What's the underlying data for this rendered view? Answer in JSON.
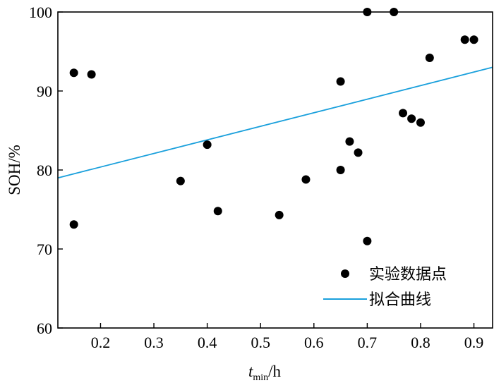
{
  "chart_data": {
    "type": "scatter",
    "xlabel": {
      "var": "t",
      "sub": "min",
      "unit": "/h"
    },
    "ylabel": "SOH/%",
    "xlim": [
      0.12,
      0.935
    ],
    "ylim": [
      60,
      100
    ],
    "xticks": [
      0.2,
      0.3,
      0.4,
      0.5,
      0.6,
      0.7,
      0.8,
      0.9
    ],
    "xtick_labels": [
      "0.2",
      "0.3",
      "0.4",
      "0.5",
      "0.6",
      "0.7",
      "0.8",
      "0.9"
    ],
    "yticks": [
      60,
      70,
      80,
      90,
      100
    ],
    "ytick_labels": [
      "60",
      "70",
      "80",
      "90",
      "100"
    ],
    "grid": false,
    "legend_position": "bottom-right",
    "series": [
      {
        "name": "实验数据点",
        "kind": "scatter",
        "color": "#000000",
        "points": [
          [
            0.15,
            92.3
          ],
          [
            0.15,
            73.1
          ],
          [
            0.183,
            92.1
          ],
          [
            0.35,
            78.6
          ],
          [
            0.4,
            83.2
          ],
          [
            0.42,
            74.8
          ],
          [
            0.535,
            74.3
          ],
          [
            0.585,
            78.8
          ],
          [
            0.65,
            91.2
          ],
          [
            0.65,
            80.0
          ],
          [
            0.667,
            83.6
          ],
          [
            0.683,
            82.2
          ],
          [
            0.7,
            100.0
          ],
          [
            0.7,
            71.0
          ],
          [
            0.75,
            100.0
          ],
          [
            0.767,
            87.2
          ],
          [
            0.783,
            86.5
          ],
          [
            0.8,
            86.0
          ],
          [
            0.817,
            94.2
          ],
          [
            0.883,
            96.5
          ],
          [
            0.9,
            96.5
          ]
        ]
      },
      {
        "name": "拟合曲线",
        "kind": "line",
        "color": "#1aa0dc",
        "points": [
          [
            0.12,
            79.0
          ],
          [
            0.935,
            93.0
          ]
        ]
      }
    ]
  }
}
